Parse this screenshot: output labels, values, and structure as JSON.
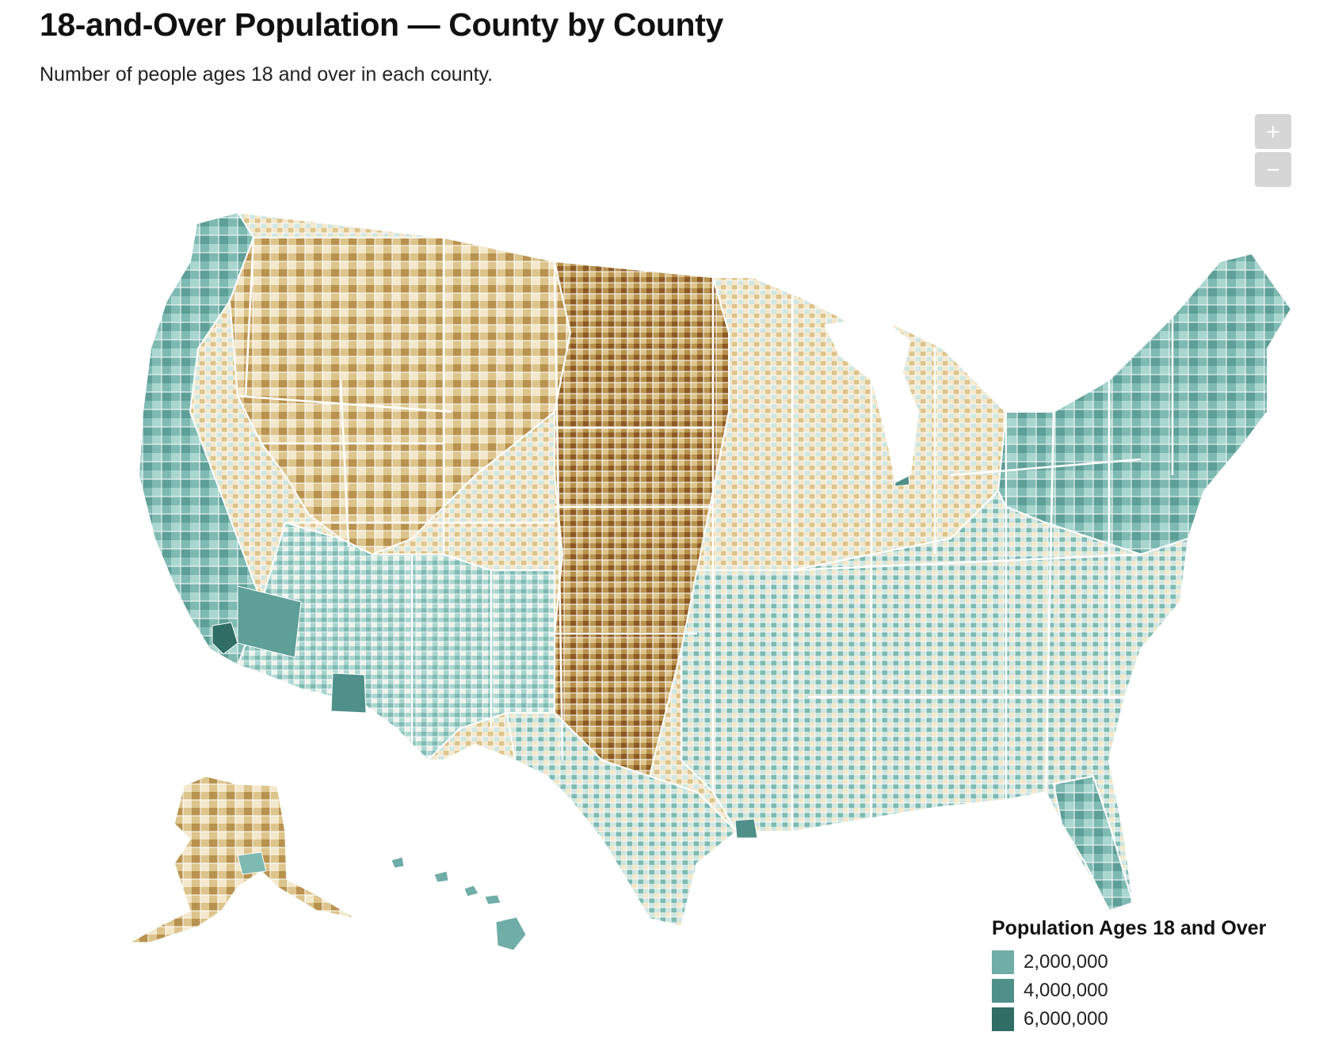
{
  "header": {
    "title": "18-and-Over Population — County by County",
    "subtitle": "Number of people ages 18 and over in each county."
  },
  "zoom": {
    "in_label": "+",
    "out_label": "−"
  },
  "legend": {
    "title": "Population Ages 18 and Over",
    "items": [
      {
        "label": "2,000,000",
        "color": "#6fada6"
      },
      {
        "label": "4,000,000",
        "color": "#4f9088"
      },
      {
        "label": "6,000,000",
        "color": "#2f6d65"
      }
    ]
  },
  "map": {
    "type": "choropleth",
    "region": "United States counties",
    "palette": [
      "#8c5a24",
      "#b8924f",
      "#dcc48c",
      "#f3e8cc",
      "#eef3ec",
      "#cfe6e1",
      "#a9d6cf",
      "#7fbab2",
      "#5e9f97",
      "#2f6d65"
    ]
  }
}
